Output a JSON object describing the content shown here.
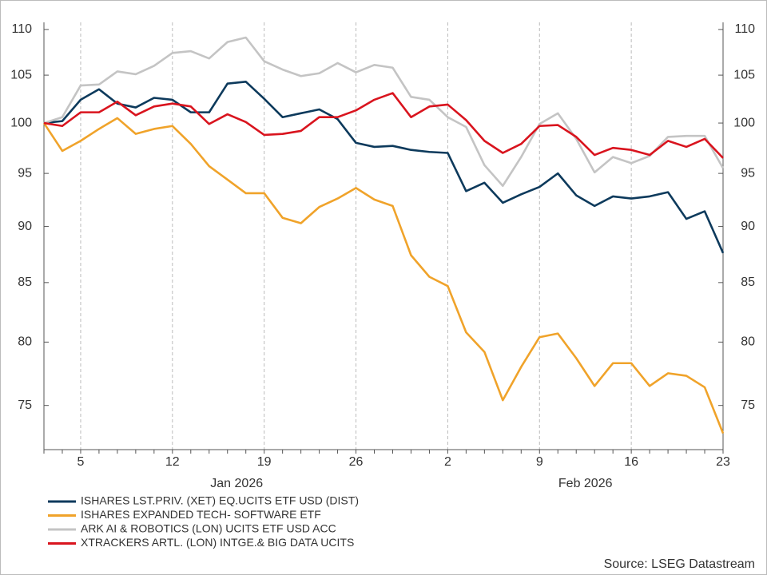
{
  "chart_data": {
    "type": "line",
    "log_scale": true,
    "x": [
      "2026-01-01",
      "2026-01-02",
      "2026-01-05",
      "2026-01-06",
      "2026-01-07",
      "2026-01-08",
      "2026-01-09",
      "2026-01-12",
      "2026-01-13",
      "2026-01-14",
      "2026-01-15",
      "2026-01-16",
      "2026-01-19",
      "2026-01-20",
      "2026-01-21",
      "2026-01-22",
      "2026-01-23",
      "2026-01-26",
      "2026-01-27",
      "2026-01-28",
      "2026-01-29",
      "2026-01-30",
      "2026-02-02",
      "2026-02-03",
      "2026-02-04",
      "2026-02-05",
      "2026-02-06",
      "2026-02-09",
      "2026-02-10",
      "2026-02-11",
      "2026-02-12",
      "2026-02-13",
      "2026-02-16",
      "2026-02-17",
      "2026-02-18",
      "2026-02-19",
      "2026-02-20",
      "2026-02-23"
    ],
    "xticks": [
      {
        "value": "2026-01-05",
        "label": "5"
      },
      {
        "value": "2026-01-12",
        "label": "12"
      },
      {
        "value": "2026-01-19",
        "label": "19"
      },
      {
        "value": "2026-01-26",
        "label": "26"
      },
      {
        "value": "2026-02-02",
        "label": "2"
      },
      {
        "value": "2026-02-09",
        "label": "9"
      },
      {
        "value": "2026-02-16",
        "label": "16"
      },
      {
        "value": "2026-02-23",
        "label": "23"
      }
    ],
    "months": [
      "Jan 2026",
      "Feb 2026"
    ],
    "ylim": [
      71.7,
      110.8
    ],
    "yticks": [
      75,
      80,
      85,
      90,
      95,
      100,
      105,
      110
    ],
    "x_grid": true,
    "series": [
      {
        "name": "ISHARES LST.PRIV. (XET) EQ.UCITS ETF USD (DIST)",
        "color": "#0d3a5c",
        "values": [
          100,
          100.2,
          102.4,
          103.5,
          102.0,
          101.6,
          102.6,
          102.4,
          101.1,
          101.1,
          104.1,
          104.3,
          102.5,
          100.6,
          101.0,
          101.4,
          100.4,
          98.0,
          97.6,
          97.7,
          97.3,
          97.1,
          97.0,
          93.3,
          94.1,
          92.2,
          93.0,
          93.7,
          95.0,
          92.9,
          91.9,
          92.8,
          92.6,
          92.8,
          93.2,
          90.7,
          91.4,
          87.6
        ]
      },
      {
        "name": "ISHARES EXPANDED TECH- SOFTWARE ETF",
        "color": "#f0a32a",
        "values": [
          100,
          97.2,
          98.2,
          99.4,
          100.5,
          98.9,
          99.4,
          99.7,
          97.9,
          95.7,
          94.4,
          93.1,
          93.1,
          90.8,
          90.3,
          91.8,
          92.6,
          93.6,
          92.5,
          91.9,
          87.4,
          85.5,
          84.7,
          80.8,
          79.2,
          75.4,
          78.0,
          80.4,
          80.7,
          78.7,
          76.5,
          78.3,
          78.3,
          76.5,
          77.5,
          77.3,
          76.4,
          72.9
        ]
      },
      {
        "name": "ARK AI & ROBOTICS (LON) UCITS ETF USD ACC",
        "color": "#c4c4c4",
        "values": [
          100,
          100.6,
          103.9,
          104.0,
          105.4,
          105.1,
          106.0,
          107.4,
          107.6,
          106.8,
          108.6,
          109.1,
          106.5,
          105.6,
          104.9,
          105.2,
          106.3,
          105.3,
          106.1,
          105.8,
          102.7,
          102.4,
          100.6,
          99.6,
          95.8,
          93.8,
          96.6,
          99.9,
          101.0,
          98.4,
          95.1,
          96.6,
          96.0,
          96.7,
          98.6,
          98.7,
          98.7,
          95.5
        ]
      },
      {
        "name": "XTRACKERS ARTL. (LON) INTGE.& BIG DATA UCITS",
        "color": "#d9141e",
        "values": [
          100,
          99.7,
          101.1,
          101.1,
          102.2,
          100.8,
          101.7,
          102.0,
          101.7,
          99.9,
          100.9,
          100.1,
          98.8,
          98.9,
          99.2,
          100.6,
          100.6,
          101.3,
          102.4,
          103.1,
          100.6,
          101.7,
          101.9,
          100.3,
          98.2,
          97.0,
          97.9,
          99.7,
          99.8,
          98.6,
          96.8,
          97.5,
          97.3,
          96.8,
          98.2,
          97.6,
          98.4,
          96.5
        ]
      }
    ],
    "source": "Source: LSEG Datastream"
  }
}
